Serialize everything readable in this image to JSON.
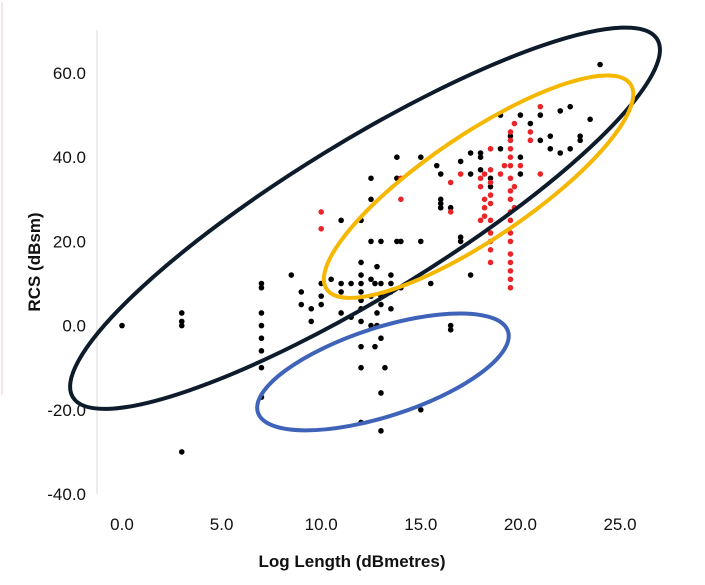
{
  "chart_data": {
    "type": "scatter",
    "title": "",
    "xlabel": "Log Length (dBmetres)",
    "ylabel": "RCS (dBsm)",
    "xlim": [
      0,
      25
    ],
    "ylim": [
      -40,
      60
    ],
    "x_ticks": [
      "0.0",
      "5.0",
      "10.0",
      "15.0",
      "20.0",
      "25.0"
    ],
    "y_ticks": [
      "-40.0",
      "-20.0",
      "0.0",
      "20.0",
      "40.0",
      "60.0"
    ],
    "grid": false,
    "legend": "none",
    "series": [
      {
        "color": "#000000",
        "points": [
          [
            0,
            0
          ],
          [
            3,
            3
          ],
          [
            3,
            1
          ],
          [
            3,
            0
          ],
          [
            3,
            -30
          ],
          [
            7,
            10
          ],
          [
            7,
            9
          ],
          [
            7,
            3
          ],
          [
            7,
            0
          ],
          [
            7,
            -3
          ],
          [
            7,
            -6
          ],
          [
            7,
            -10
          ],
          [
            7,
            -17
          ],
          [
            8.5,
            12
          ],
          [
            9,
            8
          ],
          [
            9,
            5
          ],
          [
            9.5,
            1
          ],
          [
            9.5,
            4
          ],
          [
            10,
            7
          ],
          [
            10,
            10
          ],
          [
            10,
            5
          ],
          [
            10.5,
            11
          ],
          [
            11,
            8
          ],
          [
            11,
            10
          ],
          [
            11,
            3
          ],
          [
            11,
            25
          ],
          [
            11.5,
            2
          ],
          [
            11.5,
            10
          ],
          [
            12,
            6
          ],
          [
            12,
            4
          ],
          [
            12,
            8
          ],
          [
            12,
            10
          ],
          [
            12,
            12
          ],
          [
            12,
            1
          ],
          [
            12,
            -5
          ],
          [
            12,
            -10
          ],
          [
            12,
            25
          ],
          [
            12,
            15
          ],
          [
            12,
            -23
          ],
          [
            12.5,
            30
          ],
          [
            12.5,
            20
          ],
          [
            12.5,
            11
          ],
          [
            12.5,
            7
          ],
          [
            12.5,
            0
          ],
          [
            12.5,
            35
          ],
          [
            12.7,
            10
          ],
          [
            12.7,
            -5
          ],
          [
            12.8,
            14
          ],
          [
            12.8,
            3
          ],
          [
            12.8,
            0
          ],
          [
            13,
            10
          ],
          [
            13,
            7
          ],
          [
            13,
            5
          ],
          [
            13,
            -3
          ],
          [
            13,
            20
          ],
          [
            13,
            -16
          ],
          [
            13,
            -25
          ],
          [
            13.2,
            -10
          ],
          [
            13.5,
            12
          ],
          [
            13.5,
            8
          ],
          [
            13.5,
            4
          ],
          [
            13.5,
            10
          ],
          [
            13.8,
            35
          ],
          [
            13.8,
            40
          ],
          [
            13.8,
            20
          ],
          [
            14,
            9
          ],
          [
            14,
            20
          ],
          [
            15,
            20
          ],
          [
            15,
            40
          ],
          [
            15,
            -20
          ],
          [
            15.5,
            10
          ],
          [
            15.8,
            38
          ],
          [
            16,
            36
          ],
          [
            16,
            29
          ],
          [
            16,
            30
          ],
          [
            16,
            28
          ],
          [
            16.5,
            0
          ],
          [
            16.5,
            -1
          ],
          [
            16.5,
            28
          ],
          [
            17,
            20
          ],
          [
            17,
            21
          ],
          [
            17,
            39
          ],
          [
            17.5,
            12
          ],
          [
            17.5,
            36
          ],
          [
            17.5,
            41
          ],
          [
            18,
            40
          ],
          [
            18,
            41
          ],
          [
            18,
            37
          ],
          [
            18.5,
            35
          ],
          [
            18.5,
            33
          ],
          [
            19,
            42
          ],
          [
            19,
            50
          ],
          [
            19.5,
            45
          ],
          [
            20,
            40
          ],
          [
            20,
            50
          ],
          [
            20,
            36
          ],
          [
            20.5,
            48
          ],
          [
            21,
            44
          ],
          [
            21,
            50
          ],
          [
            21.5,
            45
          ],
          [
            21.5,
            42
          ],
          [
            22,
            41
          ],
          [
            22,
            51
          ],
          [
            22.5,
            52
          ],
          [
            22.5,
            42
          ],
          [
            23,
            45
          ],
          [
            23,
            44
          ],
          [
            23.5,
            49
          ],
          [
            24,
            62
          ]
        ]
      },
      {
        "color": "#e8262a",
        "points": [
          [
            10,
            27
          ],
          [
            10,
            23
          ],
          [
            14,
            35
          ],
          [
            14,
            30
          ],
          [
            16.5,
            34
          ],
          [
            16.5,
            27
          ],
          [
            17,
            36
          ],
          [
            18,
            33
          ],
          [
            18,
            35
          ],
          [
            18,
            25
          ],
          [
            18.2,
            36
          ],
          [
            18.2,
            30
          ],
          [
            18.2,
            28
          ],
          [
            18.2,
            26
          ],
          [
            18.5,
            42
          ],
          [
            18.5,
            37
          ],
          [
            18.5,
            34
          ],
          [
            18.5,
            31
          ],
          [
            18.5,
            29
          ],
          [
            18.5,
            25
          ],
          [
            18.5,
            22
          ],
          [
            18.5,
            20
          ],
          [
            18.5,
            18
          ],
          [
            18.5,
            15
          ],
          [
            19,
            36
          ],
          [
            19.2,
            38
          ],
          [
            19.5,
            40
          ],
          [
            19.5,
            46
          ],
          [
            19.5,
            44
          ],
          [
            19.5,
            42
          ],
          [
            19.5,
            38
          ],
          [
            19.5,
            35
          ],
          [
            19.5,
            32
          ],
          [
            19.5,
            30
          ],
          [
            19.5,
            27
          ],
          [
            19.5,
            25
          ],
          [
            19.5,
            22
          ],
          [
            19.5,
            20
          ],
          [
            19.5,
            17
          ],
          [
            19.5,
            15
          ],
          [
            19.5,
            13
          ],
          [
            19.5,
            11
          ],
          [
            19.5,
            9
          ],
          [
            19.7,
            48
          ],
          [
            19.7,
            33
          ],
          [
            19.7,
            28
          ],
          [
            20.5,
            46
          ],
          [
            20.5,
            44
          ],
          [
            21,
            52
          ],
          [
            21,
            36
          ],
          [
            20,
            38
          ]
        ]
      }
    ],
    "annotations": [
      {
        "shape": "ellipse",
        "color": "#0d1b2a",
        "cx": 12.2,
        "cy": 25.5,
        "rx": 17.2,
        "ry": 8.7,
        "angle_deg": -31.5
      },
      {
        "shape": "ellipse",
        "color": "#f5b700",
        "cx": 17.9,
        "cy": 33,
        "rx": 9.2,
        "ry": 5.9,
        "angle_deg": -34
      },
      {
        "shape": "ellipse",
        "color": "#3f63b8",
        "cx": 13.1,
        "cy": -11,
        "rx": 6.6,
        "ry": 5,
        "angle_deg": -18
      }
    ]
  }
}
